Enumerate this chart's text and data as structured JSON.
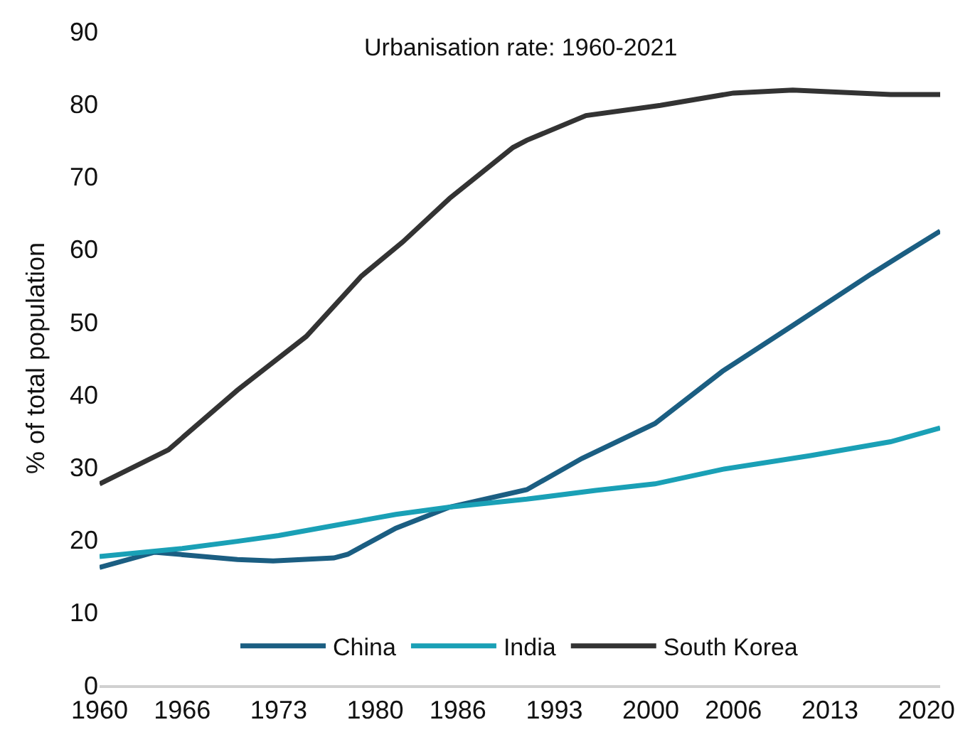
{
  "chart_data": {
    "type": "line",
    "title": "Urbanisation rate: 1960-2021",
    "ylabel": "% of total population",
    "xlim": [
      1960,
      2021
    ],
    "xticks": [
      1960,
      1966,
      1973,
      1980,
      1986,
      1993,
      2000,
      2006,
      2013,
      2020
    ],
    "ylim": [
      0,
      90
    ],
    "yticks": [
      0,
      10,
      20,
      30,
      40,
      50,
      60,
      70,
      80,
      90
    ],
    "grid": false,
    "legend": "bottom",
    "marker": "none",
    "line_style": "solid",
    "series": [
      {
        "name": "China",
        "color": "#1b5e82",
        "x": [
          1960,
          1964,
          1970,
          1972.6,
          1977,
          1978,
          1981.5,
          1985.4,
          1991,
          1995,
          2000.3,
          2005.2,
          2010.3,
          2016,
          2021
        ],
        "values": [
          16.2,
          18.3,
          17.3,
          17.1,
          17.5,
          18,
          21.6,
          24.5,
          26.9,
          31.2,
          36,
          43.2,
          49.5,
          56.6,
          62.5
        ]
      },
      {
        "name": "India",
        "color": "#1aa0b6",
        "x": [
          1960,
          1966,
          1970,
          1973,
          1978,
          1981.5,
          1985.4,
          1991,
          1996,
          2000.3,
          2005.2,
          2011.6,
          2017.4,
          2021
        ],
        "values": [
          17.7,
          18.8,
          19.8,
          20.6,
          22.3,
          23.5,
          24.5,
          25.6,
          26.8,
          27.7,
          29.7,
          31.6,
          33.5,
          35.4
        ]
      },
      {
        "name": "South Korea",
        "color": "#333333",
        "x": [
          1960,
          1965,
          1970,
          1975,
          1979,
          1982,
          1985.4,
          1990,
          1991,
          1995.3,
          2000.7,
          2006,
          2010.3,
          2017.4,
          2021
        ],
        "values": [
          27.7,
          32.4,
          40.6,
          48,
          56.3,
          61,
          67,
          74,
          75,
          78.4,
          79.8,
          81.5,
          81.9,
          81.3,
          81.3
        ]
      }
    ]
  }
}
